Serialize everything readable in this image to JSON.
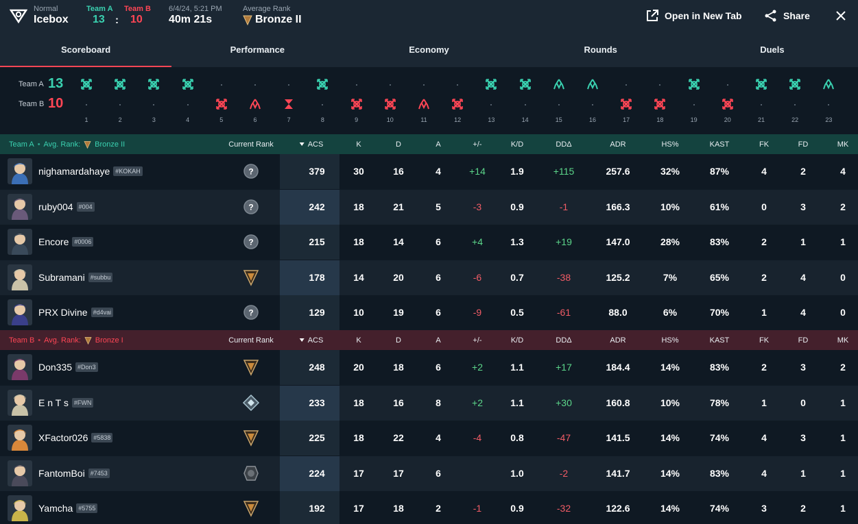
{
  "header": {
    "mode": "Normal",
    "map": "Icebox",
    "team_a_label": "Team A",
    "team_b_label": "Team B",
    "team_a_score": "13",
    "team_b_score": "10",
    "colon": ":",
    "date": "6/4/24, 5:21 PM",
    "duration": "40m 21s",
    "avg_rank_label": "Average Rank",
    "avg_rank": "Bronze II",
    "open_new_tab": "Open in New Tab",
    "share": "Share"
  },
  "tabs": [
    "Scoreboard",
    "Performance",
    "Economy",
    "Rounds",
    "Duels"
  ],
  "timeline": {
    "team_a_label": "Team A",
    "team_b_label": "Team B",
    "team_a_score": "13",
    "team_b_score": "10",
    "rounds": [
      {
        "n": "1",
        "winner": "A",
        "result": "elimination"
      },
      {
        "n": "2",
        "winner": "A",
        "result": "elimination"
      },
      {
        "n": "3",
        "winner": "A",
        "result": "elimination"
      },
      {
        "n": "4",
        "winner": "A",
        "result": "elimination"
      },
      {
        "n": "5",
        "winner": "B",
        "result": "elimination"
      },
      {
        "n": "6",
        "winner": "B",
        "result": "detonate"
      },
      {
        "n": "7",
        "winner": "B",
        "result": "time"
      },
      {
        "n": "8",
        "winner": "A",
        "result": "elimination"
      },
      {
        "n": "9",
        "winner": "B",
        "result": "elimination"
      },
      {
        "n": "10",
        "winner": "B",
        "result": "elimination"
      },
      {
        "n": "11",
        "winner": "B",
        "result": "detonate"
      },
      {
        "n": "12",
        "winner": "B",
        "result": "elimination"
      },
      {
        "n": "13",
        "winner": "A",
        "result": "elimination"
      },
      {
        "n": "14",
        "winner": "A",
        "result": "elimination"
      },
      {
        "n": "15",
        "winner": "A",
        "result": "detonate"
      },
      {
        "n": "16",
        "winner": "A",
        "result": "detonate"
      },
      {
        "n": "17",
        "winner": "B",
        "result": "elimination"
      },
      {
        "n": "18",
        "winner": "B",
        "result": "elimination"
      },
      {
        "n": "19",
        "winner": "A",
        "result": "elimination"
      },
      {
        "n": "20",
        "winner": "B",
        "result": "elimination"
      },
      {
        "n": "21",
        "winner": "A",
        "result": "elimination"
      },
      {
        "n": "22",
        "winner": "A",
        "result": "elimination"
      },
      {
        "n": "23",
        "winner": "A",
        "result": "detonate"
      }
    ]
  },
  "columns": [
    "Current Rank",
    "ACS",
    "K",
    "D",
    "A",
    "+/-",
    "K/D",
    "DDΔ",
    "ADR",
    "HS%",
    "KAST",
    "FK",
    "FD",
    "MK"
  ],
  "teams": [
    {
      "name": "Team A",
      "dot": "•",
      "avg_rank_label": "Avg. Rank:",
      "avg_rank": "Bronze II",
      "color": "#3ad1b0",
      "players": [
        {
          "name": "nighamardahaye",
          "tag": "#KOKAH",
          "rank": "unranked",
          "acs": "379",
          "k": "30",
          "d": "16",
          "a": "4",
          "pm": "+14",
          "kd": "1.9",
          "dd": "+115",
          "adr": "257.6",
          "hs": "32%",
          "kast": "87%",
          "fk": "4",
          "fd": "2",
          "mk": "4",
          "agent_color": "#3b6fb6"
        },
        {
          "name": "ruby004",
          "tag": "#004",
          "rank": "unranked",
          "acs": "242",
          "k": "18",
          "d": "21",
          "a": "5",
          "pm": "-3",
          "kd": "0.9",
          "dd": "-1",
          "adr": "166.3",
          "hs": "10%",
          "kast": "61%",
          "fk": "0",
          "fd": "3",
          "mk": "2",
          "agent_color": "#6a5a7a"
        },
        {
          "name": "Encore",
          "tag": "#0006",
          "rank": "unranked",
          "acs": "215",
          "k": "18",
          "d": "14",
          "a": "6",
          "pm": "+4",
          "kd": "1.3",
          "dd": "+19",
          "adr": "147.0",
          "hs": "28%",
          "kast": "83%",
          "fk": "2",
          "fd": "1",
          "mk": "1",
          "agent_color": "#3a4a5a"
        },
        {
          "name": "Subramani",
          "tag": "#subbu",
          "rank": "bronze",
          "acs": "178",
          "k": "14",
          "d": "20",
          "a": "6",
          "pm": "-6",
          "kd": "0.7",
          "dd": "-38",
          "adr": "125.2",
          "hs": "7%",
          "kast": "65%",
          "fk": "2",
          "fd": "4",
          "mk": "0",
          "agent_color": "#c9c2a8"
        },
        {
          "name": "PRX Divine",
          "tag": "#d4vai",
          "rank": "unranked",
          "acs": "129",
          "k": "10",
          "d": "19",
          "a": "6",
          "pm": "-9",
          "kd": "0.5",
          "dd": "-61",
          "adr": "88.0",
          "hs": "6%",
          "kast": "70%",
          "fk": "1",
          "fd": "4",
          "mk": "0",
          "agent_color": "#3a3f8a"
        }
      ]
    },
    {
      "name": "Team B",
      "dot": "•",
      "avg_rank_label": "Avg. Rank:",
      "avg_rank": "Bronze I",
      "color": "#ff4655",
      "players": [
        {
          "name": "Don335",
          "tag": "#Don3",
          "rank": "bronze",
          "acs": "248",
          "k": "20",
          "d": "18",
          "a": "6",
          "pm": "+2",
          "kd": "1.1",
          "dd": "+17",
          "adr": "184.4",
          "hs": "14%",
          "kast": "83%",
          "fk": "2",
          "fd": "3",
          "mk": "2",
          "agent_color": "#7a3a6a"
        },
        {
          "name": "E n T s",
          "tag": "#FWN",
          "rank": "platinum",
          "acs": "233",
          "k": "18",
          "d": "16",
          "a": "8",
          "pm": "+2",
          "kd": "1.1",
          "dd": "+30",
          "adr": "160.8",
          "hs": "10%",
          "kast": "78%",
          "fk": "1",
          "fd": "0",
          "mk": "1",
          "agent_color": "#c9c2a8"
        },
        {
          "name": "XFactor026",
          "tag": "#5838",
          "rank": "bronze",
          "acs": "225",
          "k": "18",
          "d": "22",
          "a": "4",
          "pm": "-4",
          "kd": "0.8",
          "dd": "-47",
          "adr": "141.5",
          "hs": "14%",
          "kast": "74%",
          "fk": "4",
          "fd": "3",
          "mk": "1",
          "agent_color": "#d9883a"
        },
        {
          "name": "FantomBoi",
          "tag": "#7453",
          "rank": "iron",
          "acs": "224",
          "k": "17",
          "d": "17",
          "a": "6",
          "pm": "",
          "kd": "1.0",
          "dd": "-2",
          "adr": "141.7",
          "hs": "14%",
          "kast": "83%",
          "fk": "4",
          "fd": "1",
          "mk": "1",
          "agent_color": "#4a4a5a"
        },
        {
          "name": "Yamcha",
          "tag": "#5755",
          "rank": "bronze",
          "acs": "192",
          "k": "17",
          "d": "18",
          "a": "2",
          "pm": "-1",
          "kd": "0.9",
          "dd": "-32",
          "adr": "122.6",
          "hs": "14%",
          "kast": "74%",
          "fk": "3",
          "fd": "2",
          "mk": "1",
          "agent_color": "#c9b44a"
        }
      ]
    }
  ],
  "colors": {
    "team_a": "#3ad1b0",
    "team_b": "#ff4655",
    "positive": "#5cd68a",
    "negative": "#f25c66",
    "gold": "#c99a3a"
  }
}
